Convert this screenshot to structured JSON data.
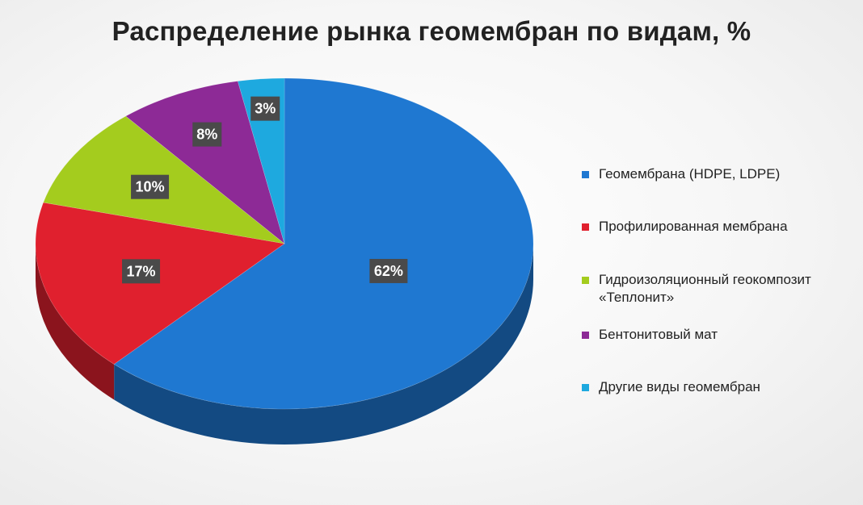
{
  "chart_data": {
    "type": "pie",
    "title": "Распределение рынка геомембран по видам, %",
    "categories": [
      "Геомембрана (HDPE, LDPE)",
      "Профилированная мембрана",
      "Гидроизоляционный геокомпозит\n«Теплонит»",
      "Бентонитовый мат",
      "Другие виды геомембран"
    ],
    "values": [
      62,
      17,
      10,
      8,
      3
    ],
    "data_labels": [
      "62%",
      "17%",
      "10%",
      "8%",
      "3%"
    ],
    "colors": [
      "#1f78d1",
      "#e0202e",
      "#a4cc1e",
      "#8d2a96",
      "#1ea9df"
    ],
    "legend_position": "right"
  }
}
